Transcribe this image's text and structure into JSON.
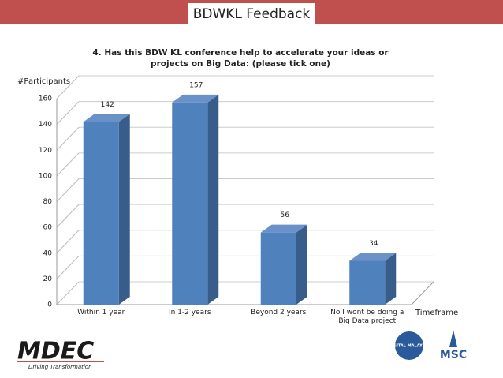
{
  "header": {
    "title": "BDWKL Feedback"
  },
  "chart_data": {
    "type": "bar",
    "title": "4. Has this BDW KL conference help to accelerate your ideas or projects on Big Data: (please tick one)",
    "y_label": "#Participants",
    "x_label": "Timeframe",
    "categories": [
      "Within 1 year",
      "In 1-2 years",
      "Beyond 2 years",
      "No I wont be doing a Big Data project"
    ],
    "values": [
      142,
      157,
      56,
      34
    ],
    "color": "#4f81bd",
    "ylim": [
      0,
      160
    ],
    "yticks": [
      0,
      20,
      40,
      60,
      80,
      100,
      120,
      140,
      160
    ],
    "grid": true
  },
  "logos": {
    "mdec": "MDEC",
    "mdec_tagline": "Driving Transformation",
    "digital": "DIGITAL MALAYSIA",
    "msc": "MSC"
  }
}
